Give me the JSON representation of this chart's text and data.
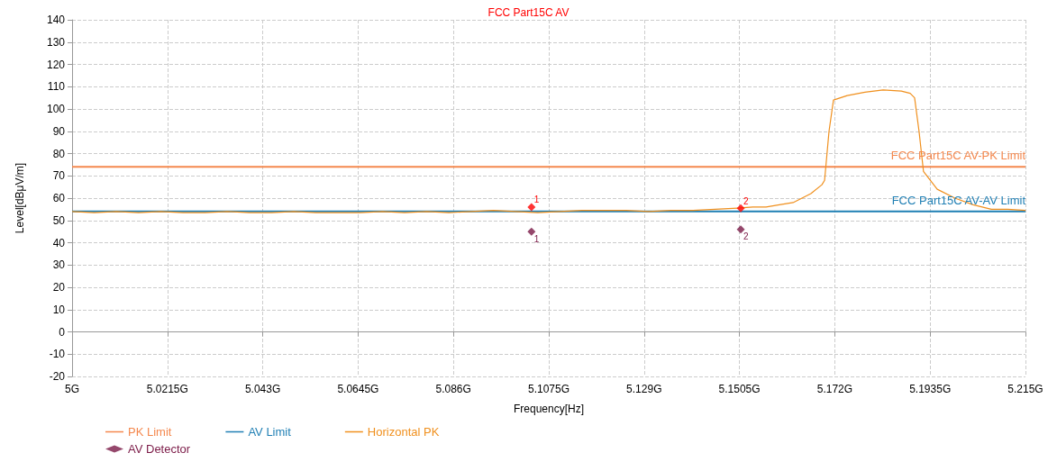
{
  "chart_data": {
    "type": "line",
    "title": "FCC Part15C AV",
    "xlabel": "Frequency[Hz]",
    "ylabel": "Level[dBμV/m]",
    "xlim": [
      5,
      5.215
    ],
    "xticks": [
      {
        "value": 5,
        "label": "5G"
      },
      {
        "value": 5.0215,
        "label": "5.0215G"
      },
      {
        "value": 5.043,
        "label": "5.043G"
      },
      {
        "value": 5.0645,
        "label": "5.0645G"
      },
      {
        "value": 5.086,
        "label": "5.086G"
      },
      {
        "value": 5.1075,
        "label": "5.1075G"
      },
      {
        "value": 5.129,
        "label": "5.129G"
      },
      {
        "value": 5.1505,
        "label": "5.1505G"
      },
      {
        "value": 5.172,
        "label": "5.172G"
      },
      {
        "value": 5.1935,
        "label": "5.1935G"
      },
      {
        "value": 5.215,
        "label": "5.215G"
      }
    ],
    "ylim": [
      -20,
      140
    ],
    "yticks": [
      -20,
      -10,
      0,
      10,
      20,
      30,
      40,
      50,
      60,
      70,
      80,
      90,
      100,
      110,
      120,
      130,
      140
    ],
    "grid": true,
    "legend": "bottom left",
    "line_style": "solid",
    "series": [
      {
        "name": "PK Limit",
        "color": "#f4884e",
        "marker": "none",
        "x": [
          5,
          5.215
        ],
        "values": [
          74,
          74
        ]
      },
      {
        "name": "AV Limit",
        "color": "#1f7fb4",
        "marker": "none",
        "x": [
          5,
          5.215
        ],
        "values": [
          54,
          54
        ]
      },
      {
        "name": "Horizontal PK",
        "color": "#f0901e",
        "marker": "none",
        "x": [
          5,
          5.005,
          5.01,
          5.015,
          5.02,
          5.025,
          5.03,
          5.035,
          5.04,
          5.045,
          5.05,
          5.055,
          5.06,
          5.065,
          5.07,
          5.075,
          5.08,
          5.085,
          5.09,
          5.095,
          5.1,
          5.105,
          5.11,
          5.115,
          5.12,
          5.125,
          5.13,
          5.135,
          5.14,
          5.145,
          5.15,
          5.1535,
          5.1565,
          5.1595,
          5.1626,
          5.1646,
          5.1666,
          5.1691,
          5.1697,
          5.1707,
          5.1717,
          5.1748,
          5.1788,
          5.1829,
          5.187,
          5.189,
          5.19,
          5.191,
          5.192,
          5.1951,
          5.1991,
          5.2032,
          5.2073,
          5.211,
          5.215
        ],
        "values": [
          54,
          53.5,
          54,
          53.5,
          54,
          53.5,
          53.5,
          54,
          53.5,
          53.5,
          54,
          53.5,
          53.5,
          53.5,
          54,
          53.5,
          54,
          53.5,
          54,
          54.5,
          54,
          53.5,
          54,
          54.5,
          54.5,
          54.5,
          54,
          54.5,
          54.5,
          55,
          55.5,
          56,
          56,
          57,
          58,
          60,
          62,
          66,
          68,
          90,
          104,
          106,
          107.5,
          108.5,
          108,
          107,
          105,
          90,
          72,
          64,
          60,
          57,
          55,
          55,
          54.5
        ]
      },
      {
        "type": "scatter",
        "color": "#ff0000",
        "marker": "diamond",
        "x": [
          5.1036,
          5.1508
        ],
        "values": [
          56,
          55.5
        ]
      },
      {
        "name": "AV Detector",
        "type": "scatter",
        "color": "#7b1a47",
        "marker": "diamond",
        "x": [
          5.1036,
          5.1508
        ],
        "values": [
          45,
          46
        ]
      }
    ],
    "annotations": [
      {
        "text": "1",
        "x": 5.1036,
        "y": 56
      },
      {
        "text": "2",
        "x": 5.1508,
        "y": 55.5
      },
      {
        "text": "1",
        "x": 5.1036,
        "y": 45
      },
      {
        "text": "2",
        "x": 5.1508,
        "y": 46
      },
      {
        "text": "FCC Part15C AV-PK Limit",
        "x": 5.215,
        "y": 74
      },
      {
        "text": "FCC Part15C AV-AV Limit",
        "x": 5.215,
        "y": 54
      }
    ]
  }
}
